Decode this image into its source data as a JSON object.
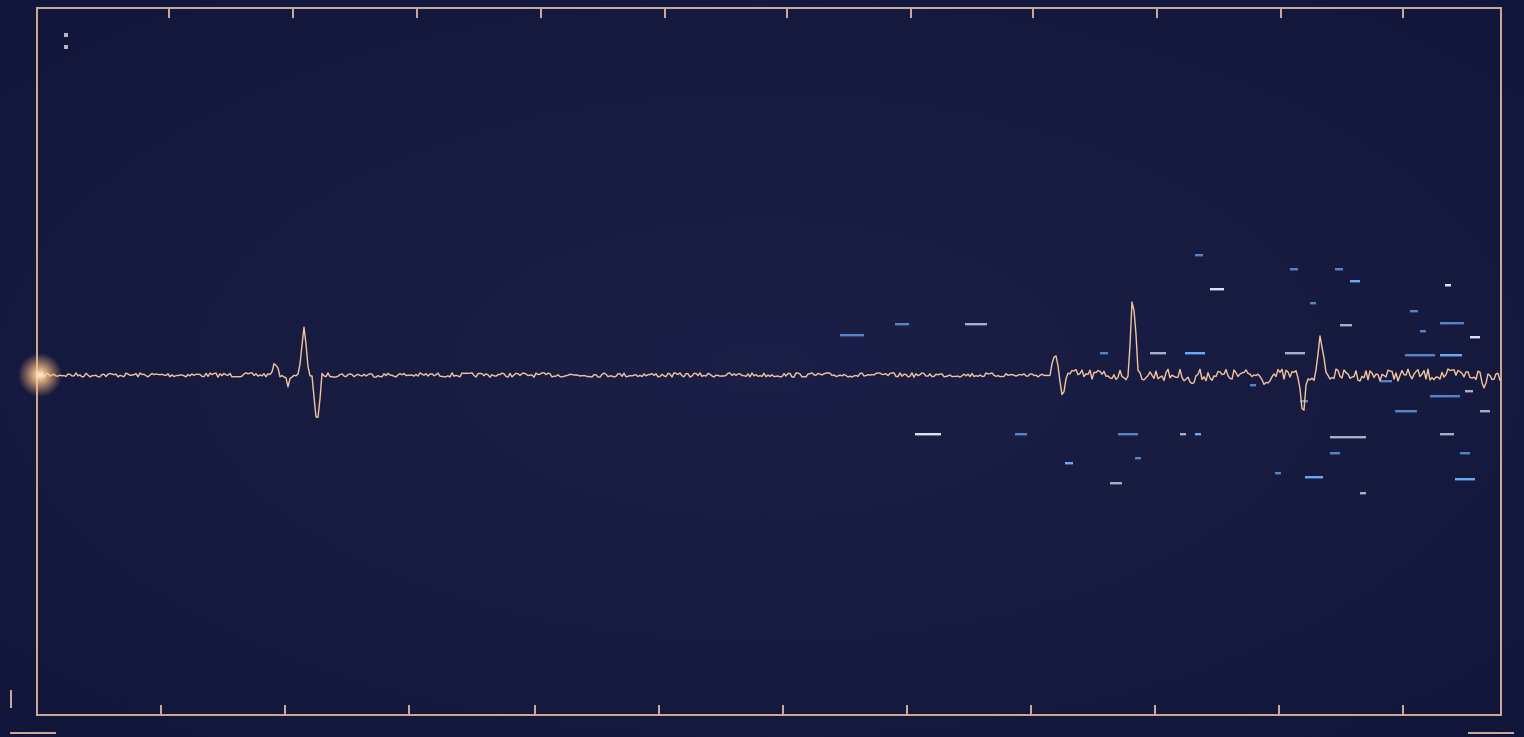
{
  "legend": {
    "items": [
      {
        "title": "",
        "lines": [
          "",
          "",
          "",
          ""
        ]
      },
      {
        "title": "",
        "lines": []
      },
      {
        "title": "",
        "lines": []
      }
    ]
  },
  "tag": "",
  "footnote": {
    "line1": "",
    "line2": ""
  },
  "colors": {
    "background": "#161a3e",
    "frame": "#c8a897",
    "signal": "#f2c49c",
    "scatter": "#6fb2ff",
    "glow": "#ffd9a8"
  }
}
